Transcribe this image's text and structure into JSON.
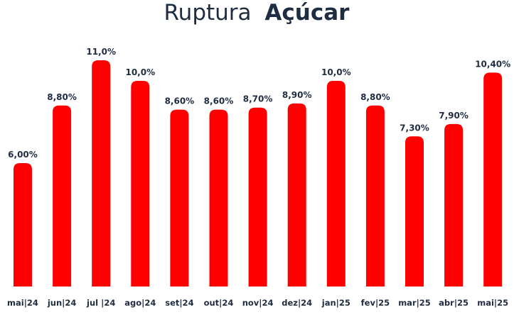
{
  "chart_data": {
    "type": "bar",
    "title_regular": "Ruptura",
    "title_bold": "Açúcar",
    "categories": [
      "mai|24",
      "jun|24",
      "jul |24",
      "ago|24",
      "set|24",
      "out|24",
      "nov|24",
      "dez|24",
      "jan|25",
      "fev|25",
      "mar|25",
      "abr|25",
      "mai|25"
    ],
    "values": [
      6.0,
      8.8,
      11.0,
      10.0,
      8.6,
      8.6,
      8.7,
      8.9,
      10.0,
      8.8,
      7.3,
      7.9,
      10.4
    ],
    "data_labels": [
      "6,00%",
      "8,80%",
      "11,0%",
      "10,0%",
      "8,60%",
      "8,60%",
      "8,70%",
      "8,90%",
      "10,0%",
      "8,80%",
      "7,30%",
      "7,90%",
      "10,40%"
    ],
    "unit": "%",
    "bar_color": "#ff0000",
    "text_color": "#1f2d42",
    "grid": false,
    "legend": "none"
  }
}
